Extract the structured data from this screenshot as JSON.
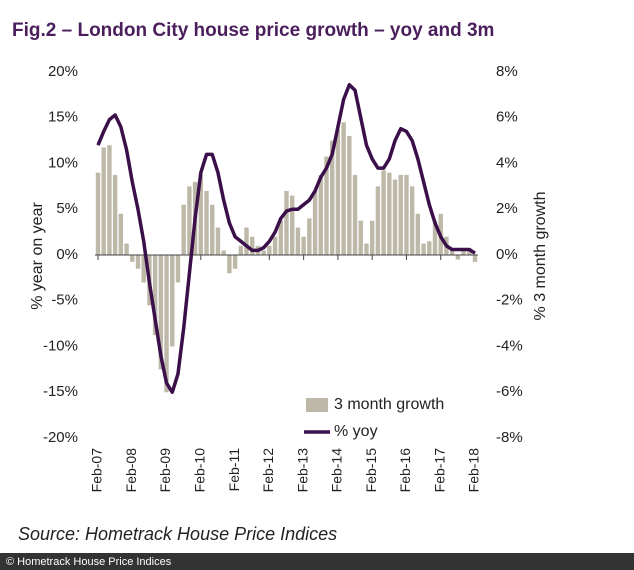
{
  "chart_data": {
    "type": "bar-line",
    "title": "Fig.2 – London City house price growth – yoy and 3m",
    "ylabel": "% year on year",
    "y2label": "% 3 month growth",
    "source": "Source: Hometrack House Price Indices",
    "credit": "© Hometrack House Price Indices",
    "categories": [
      "Feb-07",
      null,
      null,
      null,
      null,
      null,
      "Feb-08",
      null,
      null,
      null,
      null,
      null,
      "Feb-09",
      null,
      null,
      null,
      null,
      null,
      "Feb-10",
      null,
      null,
      null,
      null,
      null,
      "Feb-11",
      null,
      null,
      null,
      null,
      null,
      "Feb-12",
      null,
      null,
      null,
      null,
      null,
      "Feb-13",
      null,
      null,
      null,
      null,
      null,
      "Feb-14",
      null,
      null,
      null,
      null,
      null,
      "Feb-15",
      null,
      null,
      null,
      null,
      null,
      "Feb-16",
      null,
      null,
      null,
      null,
      null,
      "Feb-17",
      null,
      null,
      null,
      null,
      null,
      "Feb-18"
    ],
    "ylim": [
      -20,
      20
    ],
    "yticks": [
      {
        "value": -20,
        "label": "-20%"
      },
      {
        "value": -15,
        "label": "-15%"
      },
      {
        "value": -10,
        "label": "-10%"
      },
      {
        "value": -5,
        "label": "-5%"
      },
      {
        "value": 0,
        "label": "0%"
      },
      {
        "value": 5,
        "label": "5%"
      },
      {
        "value": 10,
        "label": "10%"
      },
      {
        "value": 15,
        "label": "15%"
      },
      {
        "value": 20,
        "label": "20%"
      }
    ],
    "y2lim": [
      -8,
      8
    ],
    "y2ticks": [
      {
        "value": -8,
        "label": "-8%"
      },
      {
        "value": -6,
        "label": "-6%"
      },
      {
        "value": -4,
        "label": "-4%"
      },
      {
        "value": -2,
        "label": "-2%"
      },
      {
        "value": 0,
        "label": "0%"
      },
      {
        "value": 2,
        "label": "2%"
      },
      {
        "value": 4,
        "label": "4%"
      },
      {
        "value": 6,
        "label": "6%"
      },
      {
        "value": 8,
        "label": "8%"
      }
    ],
    "series": [
      {
        "name": "3 month growth",
        "type": "bar",
        "axis": "y2",
        "color": "#bdb8a8",
        "values": [
          3.6,
          4.7,
          4.8,
          3.5,
          1.8,
          0.5,
          -0.3,
          -0.6,
          -1.2,
          -2.2,
          -3.5,
          -5,
          -6,
          -4,
          -1.2,
          2.2,
          3.0,
          3.2,
          3.5,
          2.8,
          2.2,
          1.2,
          0.2,
          -0.8,
          -0.6,
          0.4,
          1.2,
          0.8,
          0.4,
          0.2,
          0.4,
          0.8,
          1.5,
          2.8,
          2.6,
          1.2,
          0.8,
          1.6,
          2.8,
          3.5,
          4.3,
          5.0,
          5.5,
          5.8,
          5.2,
          3.5,
          1.5,
          0.5,
          1.5,
          3.0,
          3.7,
          3.6,
          3.3,
          3.5,
          3.5,
          3.0,
          1.8,
          0.5,
          0.6,
          1.5,
          1.8,
          0.8,
          0.3,
          -0.2,
          0.2,
          0.3,
          -0.3
        ]
      },
      {
        "name": "% yoy",
        "type": "line",
        "axis": "y",
        "color": "#3b0f4a",
        "values": [
          12,
          13.5,
          14.8,
          15.3,
          14,
          11.5,
          8,
          5,
          1.5,
          -3,
          -7,
          -11,
          -14,
          -15,
          -13,
          -8,
          -2,
          4,
          9,
          11,
          11,
          9,
          6,
          3.5,
          2,
          1.5,
          1,
          0.5,
          0.5,
          0.8,
          1.5,
          2.5,
          4,
          4.8,
          5,
          5,
          5.5,
          6,
          7,
          8.5,
          9.5,
          11,
          14,
          17,
          18.6,
          18,
          15,
          12,
          10.5,
          9.5,
          9.5,
          10.5,
          12.5,
          13.8,
          13.5,
          12.5,
          10.5,
          8,
          5.5,
          3.5,
          2,
          1,
          0.6,
          0.6,
          0.6,
          0.6,
          0.2
        ]
      }
    ]
  }
}
